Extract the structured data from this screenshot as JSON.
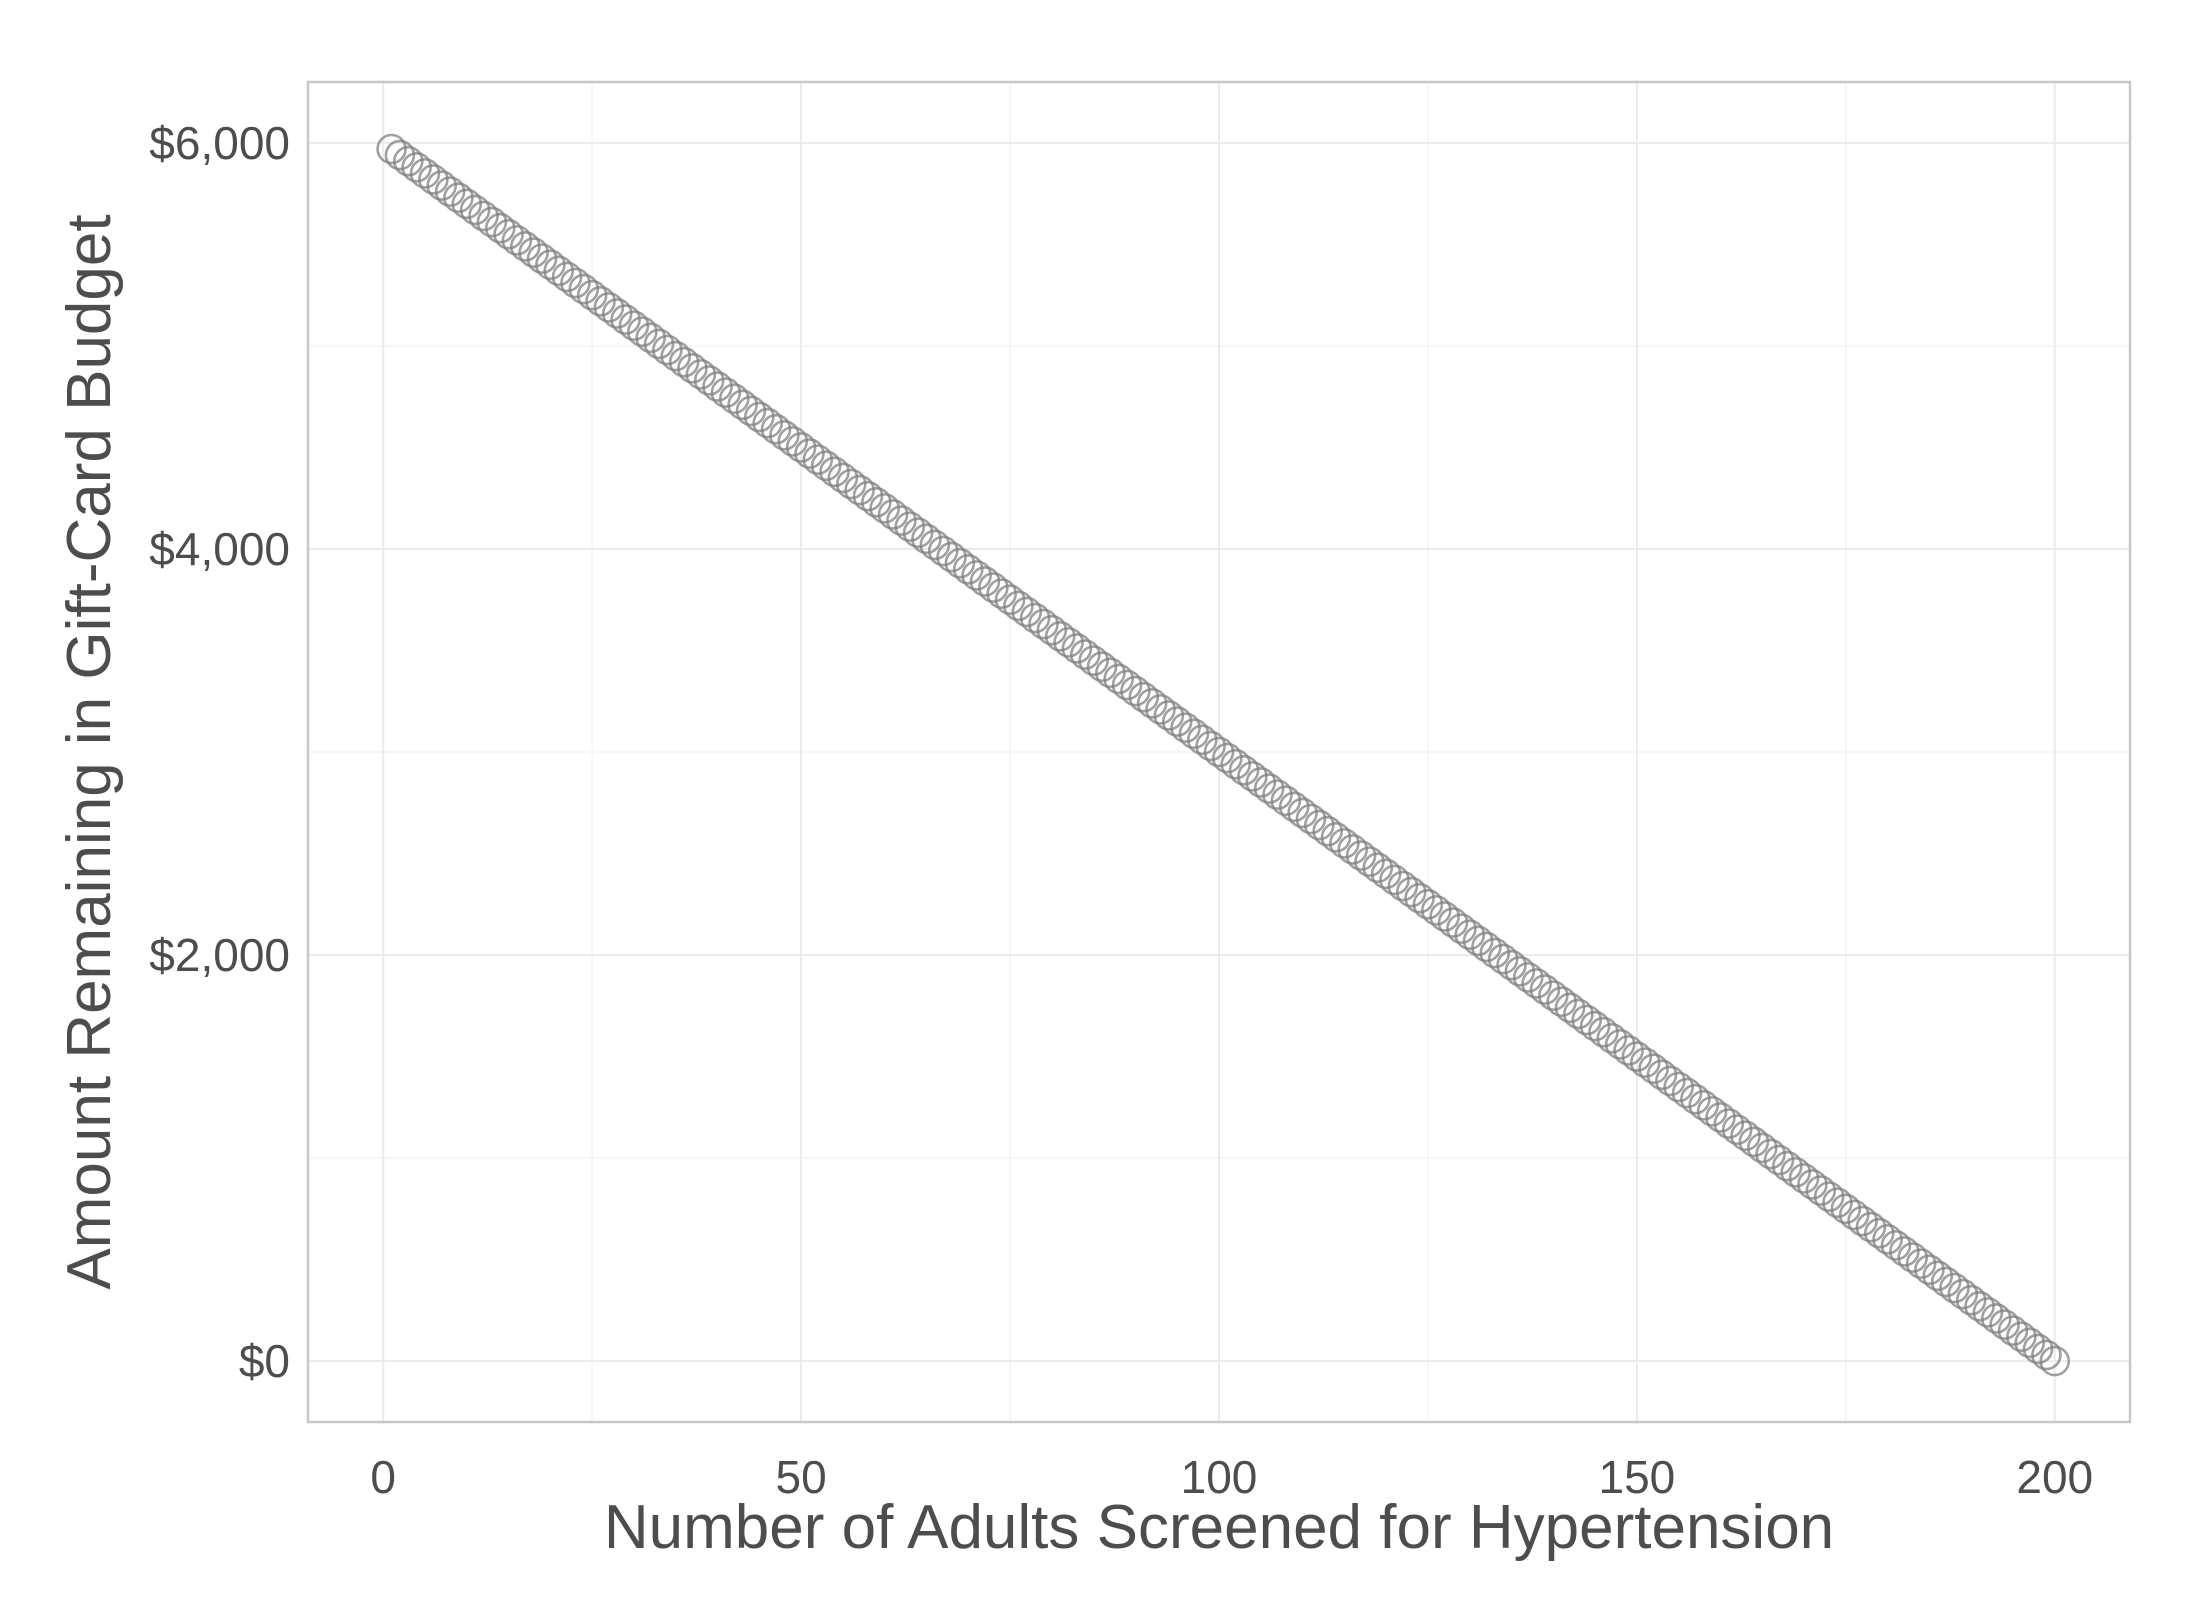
{
  "chart_data": {
    "type": "scatter",
    "title": "",
    "xlabel": "Number of Adults Screened for Hypertension",
    "ylabel": "Amount Remaining in Gift-Card Budget",
    "xlim": [
      -9,
      209
    ],
    "ylim": [
      -300,
      6300
    ],
    "x_ticks": [
      0,
      50,
      100,
      150,
      200
    ],
    "x_tick_labels": [
      "0",
      "50",
      "100",
      "150",
      "200"
    ],
    "y_ticks": [
      0,
      2000,
      4000,
      6000
    ],
    "y_tick_labels": [
      "$0",
      "$2,000",
      "$4,000",
      "$6,000"
    ],
    "x_minor_ticks": [
      25,
      75,
      125,
      175
    ],
    "y_minor_ticks": [
      1000,
      3000,
      5000
    ],
    "grid": true,
    "marker": "open-circle",
    "point_color": "#808080",
    "series": [
      {
        "x_start": 1,
        "x_end": 200,
        "x_step": 1,
        "y_formula": "6000 - 30 * x",
        "note_unused": ""
      }
    ]
  }
}
